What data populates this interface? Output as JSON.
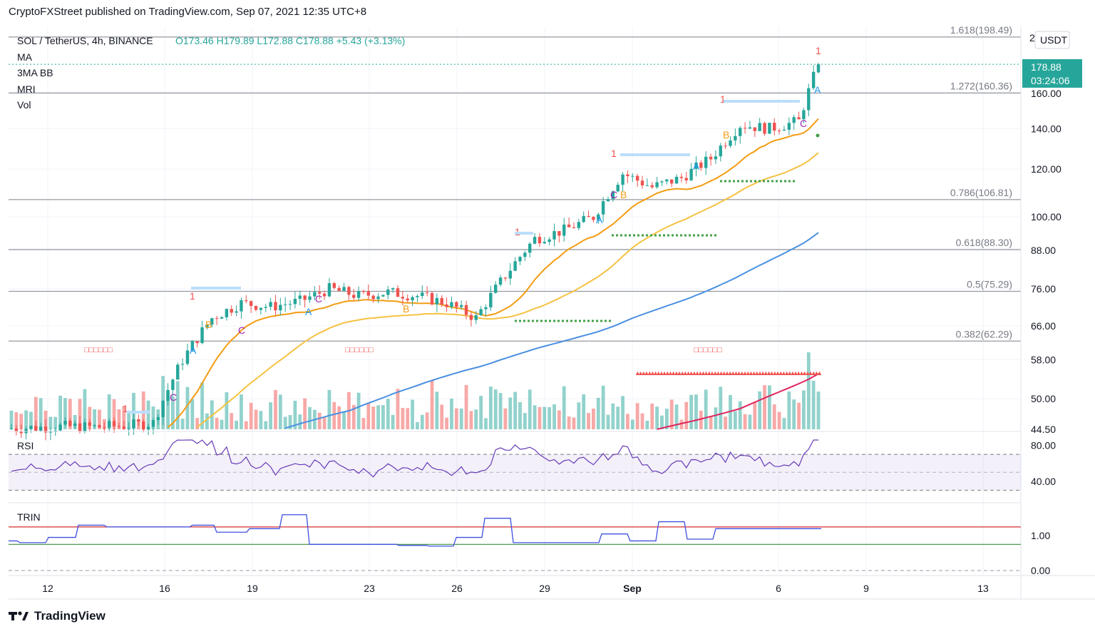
{
  "header": {
    "publisher": "CryptoFXStreet published on TradingView.com, Sep 07, 2021 12:35 UTC+8"
  },
  "legend": {
    "symbol": "SOL / TetherUS, 4h, BINANCE",
    "ohlc": "O173.46  H179.89  L172.88  C178.88  +5.43 (+3.13%)",
    "studies": [
      "MA",
      "3MA BB",
      "MRI",
      "Vol"
    ]
  },
  "price_axis": {
    "currency": "USDT",
    "ticks": [
      "160.00",
      "140.00",
      "120.00",
      "100.00",
      "88.00",
      "76.00",
      "66.00",
      "58.00",
      "50.00",
      "44.50"
    ],
    "top_clipped": "2",
    "last_price": "178.88",
    "countdown": "03:24:06"
  },
  "fib_levels": [
    {
      "label": "1.618(198.49)",
      "value": 198.49
    },
    {
      "label": "1.272(160.36)",
      "value": 160.36
    },
    {
      "label": "0.786(106.81)",
      "value": 106.81
    },
    {
      "label": "0.618(88.30)",
      "value": 88.3
    },
    {
      "label": "0.5(75.29)",
      "value": 75.29
    },
    {
      "label": "0.382(62.29)",
      "value": 62.29
    }
  ],
  "rsi": {
    "label": "RSI",
    "ticks": [
      "80.00",
      "40.00"
    ],
    "upper": 70,
    "lower": 30
  },
  "trin": {
    "label": "TRIN",
    "ticks": [
      "1.00",
      "0.00"
    ]
  },
  "time_axis": [
    "12",
    "16",
    "19",
    "23",
    "26",
    "29",
    "Sep",
    "6",
    "9",
    "13"
  ],
  "annotations": {
    "count_one": "1",
    "wave_a": "A",
    "wave_b": "B",
    "wave_c": "C",
    "boxes_text": "□□□□□□",
    "triangles_text": "▲▲▲▲▲▲▲▲▲▲▲▲▲▲▲▲▲▲▲▲▲▲▲▲▲▲▲▲▲▲▲▲▲▲▲▲▲▲▲▲▲▲▲▲▲▲▲▲▲▲▲▲▲▲▲▲▲▲▲▲▲▲"
  },
  "footer": {
    "brand": "TradingView"
  },
  "colors": {
    "up": "#26a69a",
    "down": "#ef5350",
    "ma_orange": "#f39c12",
    "ma_yellow": "#f5c242",
    "ma_blue": "#4a90e2",
    "ma_red": "#e0245e",
    "rsi_line": "#673ab7",
    "trin_line": "#3f51e0"
  },
  "chart_data": {
    "type": "candlestick",
    "title": "SOL / TetherUS, 4h, BINANCE",
    "ylabel": "USDT",
    "y_scale": "log",
    "ylim": [
      44.5,
      205
    ],
    "x_range_days": [
      "Aug 11",
      "Sep 14"
    ],
    "last": {
      "open": 173.46,
      "high": 179.89,
      "low": 172.88,
      "close": 178.88,
      "change": 5.43,
      "change_pct": 3.13
    },
    "daily_closes": [
      {
        "date": "Aug 11",
        "close": 44.8
      },
      {
        "date": "Aug 12",
        "close": 45.0
      },
      {
        "date": "Aug 13",
        "close": 44.9
      },
      {
        "date": "Aug 14",
        "close": 45.1
      },
      {
        "date": "Aug 15",
        "close": 45.6
      },
      {
        "date": "Aug 16",
        "close": 58.0
      },
      {
        "date": "Aug 17",
        "close": 68.0
      },
      {
        "date": "Aug 18",
        "close": 72.0
      },
      {
        "date": "Aug 19",
        "close": 71.0
      },
      {
        "date": "Aug 20",
        "close": 72.5
      },
      {
        "date": "Aug 21",
        "close": 76.0
      },
      {
        "date": "Aug 22",
        "close": 74.0
      },
      {
        "date": "Aug 23",
        "close": 75.0
      },
      {
        "date": "Aug 24",
        "close": 74.0
      },
      {
        "date": "Aug 25",
        "close": 72.0
      },
      {
        "date": "Aug 26",
        "close": 68.0
      },
      {
        "date": "Aug 27",
        "close": 80.0
      },
      {
        "date": "Aug 28",
        "close": 92.0
      },
      {
        "date": "Aug 29",
        "close": 95.0
      },
      {
        "date": "Aug 30",
        "close": 100.0
      },
      {
        "date": "Aug 31",
        "close": 118.0
      },
      {
        "date": "Sep 01",
        "close": 112.0
      },
      {
        "date": "Sep 02",
        "close": 116.0
      },
      {
        "date": "Sep 03",
        "close": 125.0
      },
      {
        "date": "Sep 04",
        "close": 142.0
      },
      {
        "date": "Sep 05",
        "close": 140.0
      },
      {
        "date": "Sep 06",
        "close": 144.0
      },
      {
        "date": "Sep 07",
        "close": 178.88
      }
    ]
  }
}
